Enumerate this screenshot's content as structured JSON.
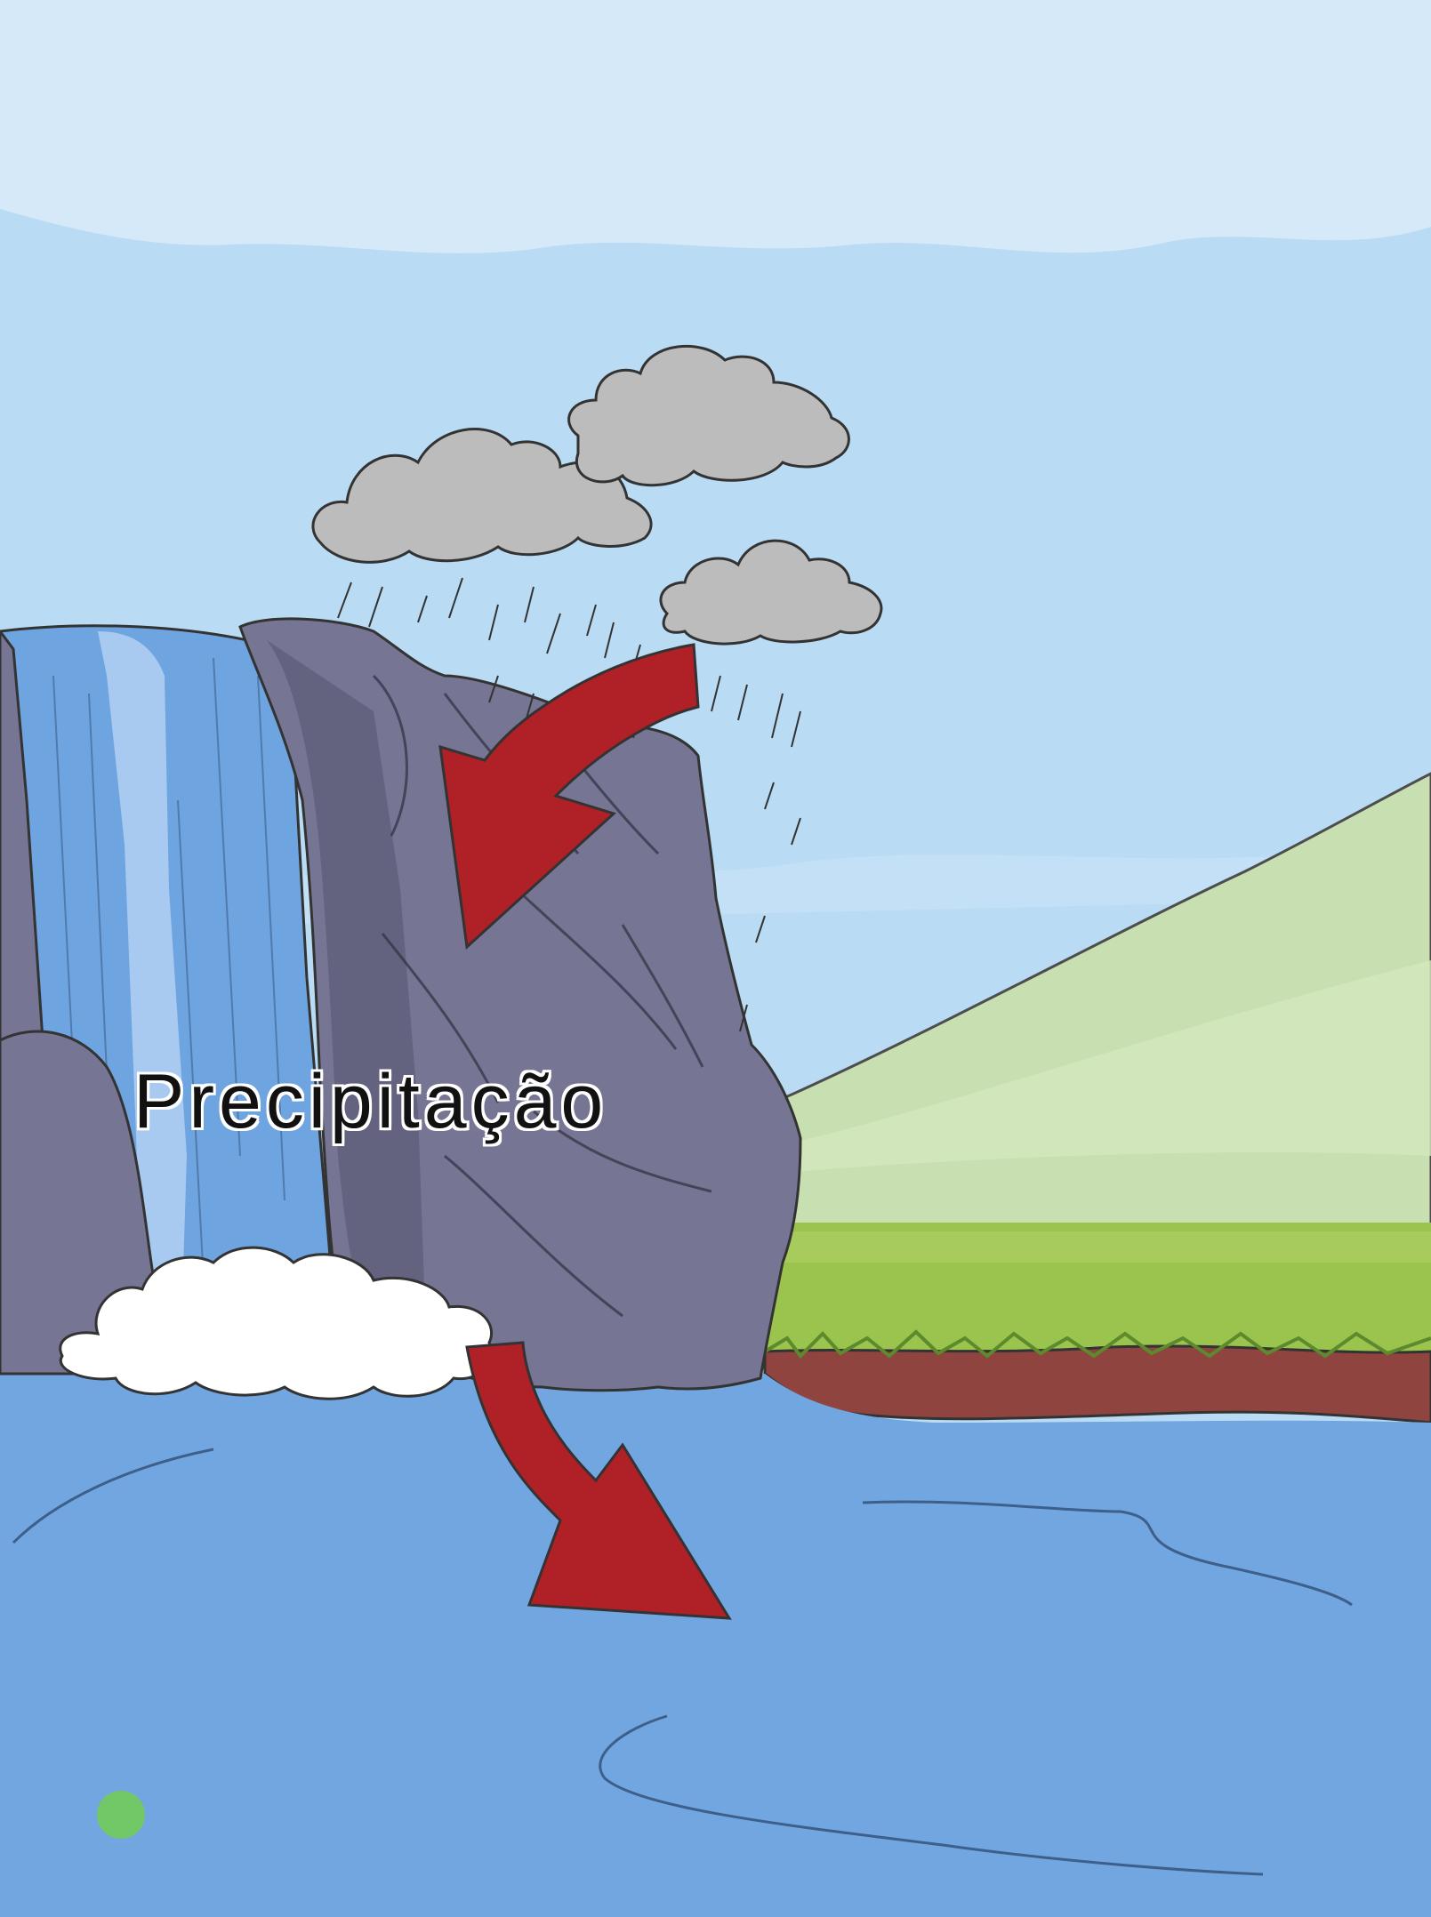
{
  "diagram": {
    "label": "Precipitação",
    "colors": {
      "sky": "#b9dbf4",
      "sky_cloud_band": "#d6e9f8",
      "rain_cloud": "#bdbcbc",
      "rock": "#767593",
      "waterfall": "#6ea4e0",
      "hill": "#c8dfb1",
      "grass": "#9bc44e",
      "soil": "#8f4440",
      "water": "#72a6e0",
      "arrow": "#b02027",
      "foam": "#ffffff",
      "indicator": "#72c766"
    }
  }
}
